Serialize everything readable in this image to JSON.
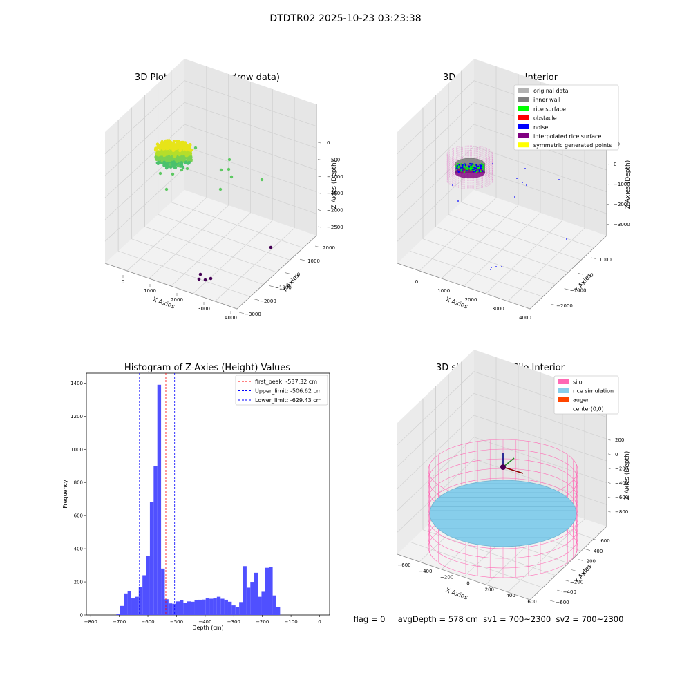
{
  "figure": {
    "suptitle": "DTDTR02 2025-10-23 03:23:38",
    "status_text": "flag = 0     avgDepth = 578 cm  sv1 = 700~2300  sv2 = 700~2300"
  },
  "chart_data": [
    {
      "type": "scatter",
      "title": "3D Plot of Silo Interior(row data)",
      "xlabel": "X Axies",
      "ylabel": "Y Axies",
      "zlabel": "Z Axies (Depth)",
      "x_ticks": [
        "0",
        "1000",
        "2000",
        "3000",
        "4000"
      ],
      "y_ticks": [
        "−3000",
        "−2000",
        "−1000",
        "0",
        "1000",
        "2000"
      ],
      "z_ticks": [
        "0",
        "−500",
        "−1000",
        "−1500",
        "−2000",
        "−2500"
      ],
      "grid": true
    },
    {
      "type": "scatter",
      "title": "3D classify of Silo Interior",
      "xlabel": "X Axies",
      "ylabel": "Y Axies",
      "zlabel": "Z Axies (Depth)",
      "x_ticks": [
        "0",
        "1000",
        "2000",
        "3000",
        "4000"
      ],
      "y_ticks": [
        "−2000",
        "−1000",
        "0",
        "1000"
      ],
      "z_ticks": [
        "00",
        "0",
        "−1000",
        "−2000",
        "−3000"
      ],
      "grid": true,
      "legend_position": "top-right",
      "legend": [
        {
          "label": "original data",
          "color": "#b3b3b3"
        },
        {
          "label": "inner wall",
          "color": "#808080"
        },
        {
          "label": "rice surface",
          "color": "#00ff00"
        },
        {
          "label": "obstacle",
          "color": "#ff0000"
        },
        {
          "label": "noise",
          "color": "#0000ff"
        },
        {
          "label": "interpolated rice surface",
          "color": "#800080"
        },
        {
          "label": "symmetric generated points",
          "color": "#ffff00"
        }
      ]
    },
    {
      "type": "bar",
      "title": "Histogram of Z-Axies (Height) Values",
      "xlabel": "Depth (cm)",
      "ylabel": "Frequency",
      "xlim": [
        -815,
        35
      ],
      "ylim": [
        0,
        1460
      ],
      "bar_color": "#5050ff",
      "x_ticks": [
        "−800",
        "−700",
        "−600",
        "−500",
        "−400",
        "−300",
        "−200",
        "−100",
        "0"
      ],
      "x_tick_values": [
        -800,
        -700,
        -600,
        -500,
        -400,
        -300,
        -200,
        -100,
        0
      ],
      "y_ticks": [
        "0",
        "200",
        "400",
        "600",
        "800",
        "1000",
        "1200",
        "1400"
      ],
      "y_tick_values": [
        0,
        200,
        400,
        600,
        800,
        1000,
        1200,
        1400
      ],
      "bins": [
        [
          -710,
          -697,
          8
        ],
        [
          -697,
          -684,
          55
        ],
        [
          -684,
          -671,
          130
        ],
        [
          -671,
          -658,
          145
        ],
        [
          -658,
          -645,
          100
        ],
        [
          -645,
          -632,
          110
        ],
        [
          -632,
          -619,
          170
        ],
        [
          -619,
          -606,
          240
        ],
        [
          -606,
          -593,
          355
        ],
        [
          -593,
          -580,
          680
        ],
        [
          -580,
          -567,
          900
        ],
        [
          -567,
          -554,
          1390
        ],
        [
          -554,
          -541,
          280
        ],
        [
          -541,
          -528,
          95
        ],
        [
          -528,
          -515,
          70
        ],
        [
          -515,
          -502,
          68
        ],
        [
          -502,
          -489,
          82
        ],
        [
          -489,
          -476,
          90
        ],
        [
          -476,
          -463,
          75
        ],
        [
          -463,
          -450,
          82
        ],
        [
          -450,
          -437,
          80
        ],
        [
          -437,
          -424,
          88
        ],
        [
          -424,
          -411,
          92
        ],
        [
          -411,
          -398,
          93
        ],
        [
          -398,
          -385,
          100
        ],
        [
          -385,
          -372,
          98
        ],
        [
          -372,
          -359,
          100
        ],
        [
          -359,
          -346,
          110
        ],
        [
          -346,
          -333,
          98
        ],
        [
          -333,
          -320,
          92
        ],
        [
          -320,
          -307,
          80
        ],
        [
          -307,
          -294,
          58
        ],
        [
          -294,
          -281,
          50
        ],
        [
          -281,
          -268,
          78
        ],
        [
          -268,
          -255,
          295
        ],
        [
          -255,
          -242,
          165
        ],
        [
          -242,
          -229,
          200
        ],
        [
          -229,
          -216,
          255
        ],
        [
          -216,
          -203,
          110
        ],
        [
          -203,
          -190,
          140
        ],
        [
          -190,
          -177,
          285
        ],
        [
          -177,
          -164,
          290
        ],
        [
          -164,
          -151,
          118
        ],
        [
          -151,
          -138,
          50
        ]
      ],
      "lines": [
        {
          "label": "first_peak: -537.32 cm",
          "x": -537.32,
          "color": "#ff0000"
        },
        {
          "label": "Upper_limit: -506.62 cm",
          "x": -506.62,
          "color": "#0000ff"
        },
        {
          "label": "Lower_limit: -629.43 cm",
          "x": -629.43,
          "color": "#0000ff"
        }
      ],
      "legend_position": "top-right"
    },
    {
      "type": "scatter",
      "title": "3D simulation of Silo Interior",
      "xlabel": "X Axies",
      "ylabel": "Y Axies",
      "zlabel": "Z Axies (Depth)",
      "x_ticks": [
        "−600",
        "−400",
        "−200",
        "0",
        "200",
        "400",
        "600"
      ],
      "y_ticks": [
        "−600",
        "−400",
        "−200",
        "0",
        "200",
        "400",
        "600"
      ],
      "z_ticks": [
        "200",
        "0",
        "−200",
        "−400",
        "−600",
        "−800"
      ],
      "grid": true,
      "legend_position": "top-right",
      "legend": [
        {
          "label": "silo",
          "color": "#ff69b4"
        },
        {
          "label": "rice simulation",
          "color": "#87ceeb"
        },
        {
          "label": "auger",
          "color": "#ff4500"
        },
        {
          "label": "center(0,0)",
          "color": ""
        }
      ]
    }
  ]
}
